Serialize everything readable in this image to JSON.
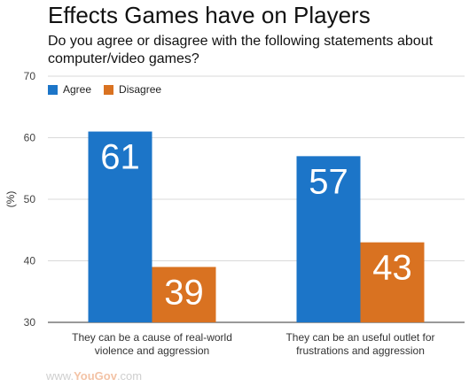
{
  "chart_data": {
    "type": "bar",
    "title": "Effects Games have on Players",
    "subtitle": "Do you agree or disagree with the following statements about computer/video games?",
    "ylabel": "(%)",
    "xlabel": "",
    "ylim": [
      30,
      70
    ],
    "yticks": [
      "30",
      "40",
      "50",
      "60",
      "70"
    ],
    "grid": true,
    "legend_position": "top-left",
    "categories": [
      [
        "They can be a cause of real-world",
        "violence and aggression"
      ],
      [
        "They can be an useful outlet for",
        "frustrations and aggression"
      ]
    ],
    "series": [
      {
        "name": "Agree",
        "color": "#1c75c8",
        "values": [
          61,
          57
        ]
      },
      {
        "name": "Disagree",
        "color": "#d97221",
        "values": [
          39,
          43
        ]
      }
    ]
  },
  "watermark": {
    "prefix": "www.",
    "brand": "YouGov",
    "suffix": ".com"
  }
}
